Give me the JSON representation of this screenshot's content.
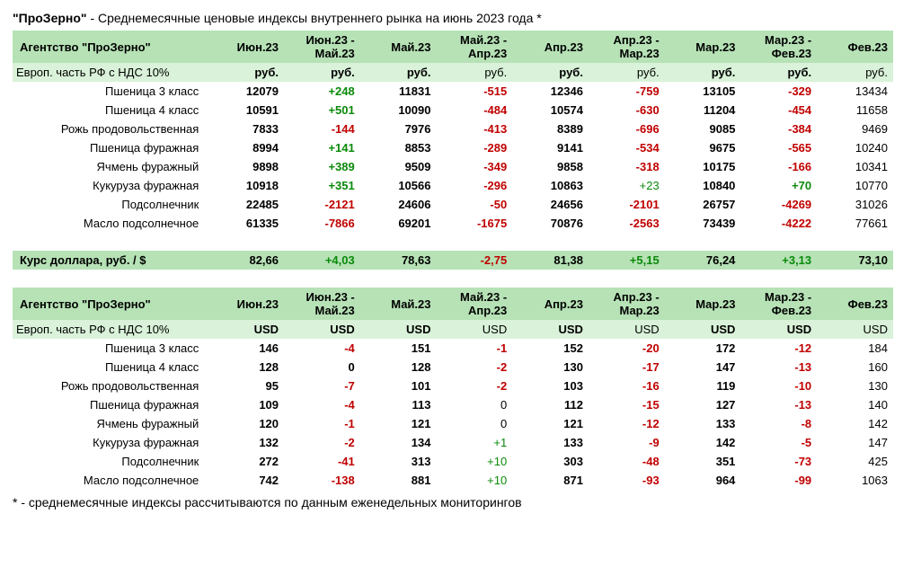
{
  "title": {
    "bold": "\"ПроЗерно\"",
    "rest": " - Среднемесячные ценовые индексы внутреннего рынка на июнь 2023 года *"
  },
  "headers": {
    "agency": "Агентство \"ПроЗерно\"",
    "region": "Европ. часть РФ с НДС 10%",
    "periods": [
      "Июн.23",
      "Июн.23 - Май.23",
      "Май.23",
      "Май.23 - Апр.23",
      "Апр.23",
      "Апр.23 - Мар.23",
      "Мар.23",
      "Мар.23 - Фев.23",
      "Фев.23"
    ]
  },
  "currencies": {
    "rub": "руб.",
    "usd": "USD"
  },
  "row_labels": [
    "Пшеница 3 класс",
    "Пшеница 4 класс",
    "Рожь продовольственная",
    "Пшеница фуражная",
    "Ячмень фуражный",
    "Кукуруза фуражная",
    "Подсолнечник",
    "Масло подсолнечное"
  ],
  "rub_rows": [
    [
      "12079",
      "+248",
      "11831",
      "-515",
      "12346",
      "-759",
      "13105",
      "-329",
      "13434"
    ],
    [
      "10591",
      "+501",
      "10090",
      "-484",
      "10574",
      "-630",
      "11204",
      "-454",
      "11658"
    ],
    [
      "7833",
      "-144",
      "7976",
      "-413",
      "8389",
      "-696",
      "9085",
      "-384",
      "9469"
    ],
    [
      "8994",
      "+141",
      "8853",
      "-289",
      "9141",
      "-534",
      "9675",
      "-565",
      "10240"
    ],
    [
      "9898",
      "+389",
      "9509",
      "-349",
      "9858",
      "-318",
      "10175",
      "-166",
      "10341"
    ],
    [
      "10918",
      "+351",
      "10566",
      "-296",
      "10863",
      "+23",
      "10840",
      "+70",
      "10770"
    ],
    [
      "22485",
      "-2121",
      "24606",
      "-50",
      "24656",
      "-2101",
      "26757",
      "-4269",
      "31026"
    ],
    [
      "61335",
      "-7866",
      "69201",
      "-1675",
      "70876",
      "-2563",
      "73439",
      "-4222",
      "77661"
    ]
  ],
  "usd_rows": [
    [
      "146",
      "-4",
      "151",
      "-1",
      "152",
      "-20",
      "172",
      "-12",
      "184"
    ],
    [
      "128",
      "0",
      "128",
      "-2",
      "130",
      "-17",
      "147",
      "-13",
      "160"
    ],
    [
      "95",
      "-7",
      "101",
      "-2",
      "103",
      "-16",
      "119",
      "-10",
      "130"
    ],
    [
      "109",
      "-4",
      "113",
      "0",
      "112",
      "-15",
      "127",
      "-13",
      "140"
    ],
    [
      "120",
      "-1",
      "121",
      "0",
      "121",
      "-12",
      "133",
      "-8",
      "142"
    ],
    [
      "132",
      "-2",
      "134",
      "+1",
      "133",
      "-9",
      "142",
      "-5",
      "147"
    ],
    [
      "272",
      "-41",
      "313",
      "+10",
      "303",
      "-48",
      "351",
      "-73",
      "425"
    ],
    [
      "742",
      "-138",
      "881",
      "+10",
      "871",
      "-93",
      "964",
      "-99",
      "1063"
    ]
  ],
  "fx": {
    "label": "Курс доллара,  руб. / $",
    "values": [
      "82,66",
      "+4,03",
      "78,63",
      "-2,75",
      "81,38",
      "+5,15",
      "76,24",
      "+3,13",
      "73,10"
    ]
  },
  "footer": "* - среднемесячные индексы рассчитываются по данным еженедельных мониторингов",
  "style": {
    "header_bg": "#b6e2b6",
    "sub_bg": "#d9f2d9",
    "pos_color": "#0a8a0a",
    "neg_color": "#c00000",
    "bold_cols": [
      0,
      1,
      2,
      4,
      6,
      7
    ]
  }
}
